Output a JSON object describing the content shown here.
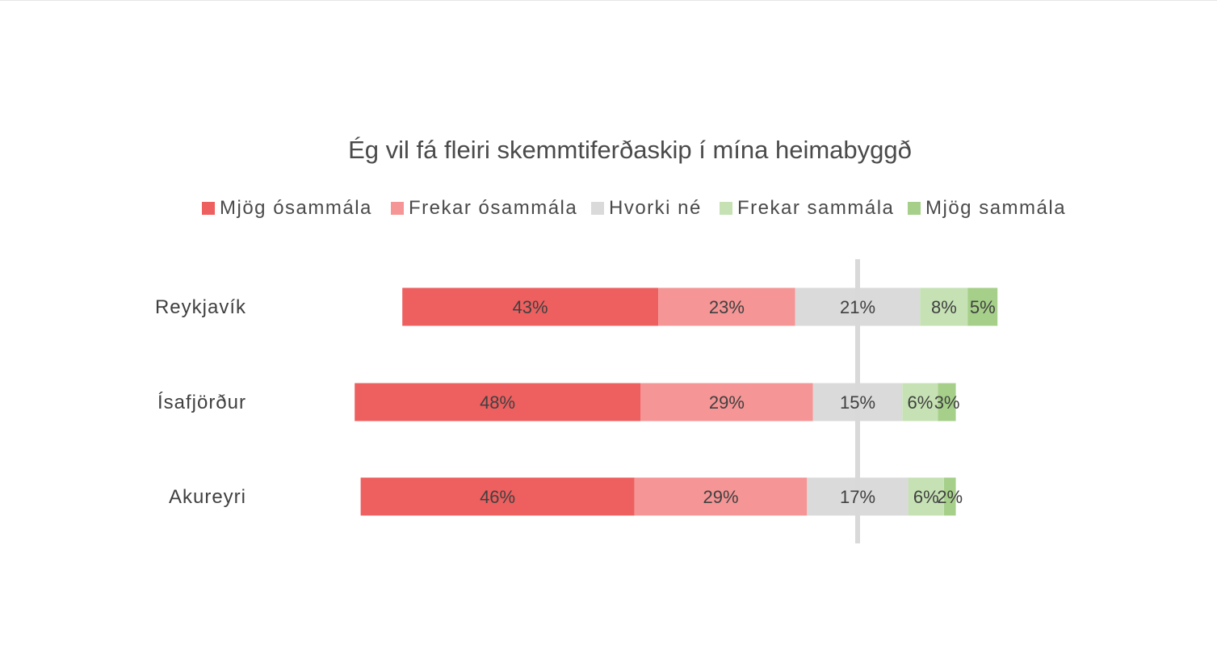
{
  "chart_data": {
    "type": "bar",
    "orientation": "horizontal",
    "stacked": "diverging",
    "title": "Ég vil fá fleiri skemmtiferðaskip í mína heimabyggð",
    "xlabel": "",
    "ylabel": "",
    "categories": [
      "Reykjavík",
      "Ísafjörður",
      "Akureyri"
    ],
    "series": [
      {
        "name": "Mjög ósammála",
        "color": "#EE5F5F",
        "values": [
          43,
          48,
          46
        ],
        "labels": [
          "43%",
          "48%",
          "46%"
        ]
      },
      {
        "name": "Frekar ósammála",
        "color": "#F59595",
        "values": [
          23,
          29,
          29
        ],
        "labels": [
          "23%",
          "29%",
          "29%"
        ]
      },
      {
        "name": "Hvorki né",
        "color": "#DADADA",
        "values": [
          21,
          15,
          17
        ],
        "labels": [
          "21%",
          "15%",
          "17%"
        ]
      },
      {
        "name": "Frekar sammála",
        "color": "#C6E2B5",
        "values": [
          8,
          6,
          6
        ],
        "labels": [
          "8%",
          "6%",
          "6%"
        ]
      },
      {
        "name": "Mjög sammála",
        "color": "#A6D08A",
        "values": [
          5,
          3,
          2
        ],
        "labels": [
          "5%",
          "3%",
          "2%"
        ]
      }
    ],
    "legend_position": "top",
    "grid": false,
    "center_line_color": "#D9D9D9"
  }
}
